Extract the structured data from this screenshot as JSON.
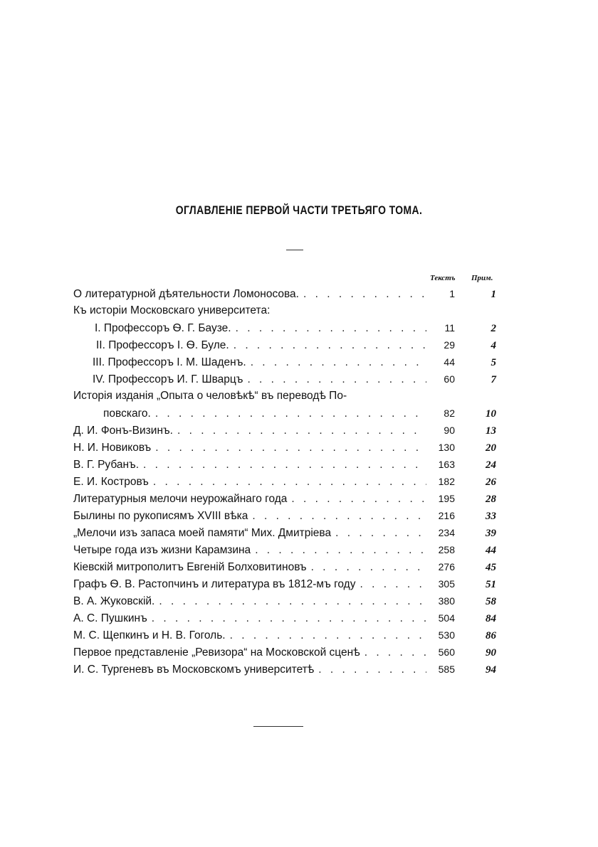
{
  "title": "ОГЛАВЛЕНІЕ ПЕРВОЙ ЧАСТИ ТРЕТЬЯГО ТОМА.",
  "columns": {
    "text": "Текстъ",
    "notes": "Прим."
  },
  "entries": [
    {
      "title": "О литературной дѣятельности Ломоносова.",
      "page": "1",
      "note": "1"
    },
    {
      "title": "Къ исторіи Московскаго университета:",
      "page": "",
      "note": ""
    },
    {
      "title": "I. Профессоръ Ѳ. Г. Баузе.",
      "page": "11",
      "note": "2"
    },
    {
      "title": "II. Профессоръ I. Ѳ. Буле.",
      "page": "29",
      "note": "4"
    },
    {
      "title": "III. Профессоръ I. М. Шаденъ.",
      "page": "44",
      "note": "5"
    },
    {
      "title": "IV. Профессоръ И. Г. Шварцъ",
      "page": "60",
      "note": "7"
    },
    {
      "title": "Исторія изданія „Опыта о человѣкѣ“ въ переводѣ По-",
      "page": "",
      "note": ""
    },
    {
      "title": "повскаго.",
      "page": "82",
      "note": "10"
    },
    {
      "title": "Д. И. Фонъ-Визинъ.",
      "page": "90",
      "note": "13"
    },
    {
      "title": "Н. И. Новиковъ",
      "page": "130",
      "note": "20"
    },
    {
      "title": "В. Г. Рубанъ.",
      "page": "163",
      "note": "24"
    },
    {
      "title": "Е. И. Костровъ",
      "page": "182",
      "note": "26"
    },
    {
      "title": "Литературныя мелочи неурожайнаго года",
      "page": "195",
      "note": "28"
    },
    {
      "title": "Былины по рукописямъ XVIII вѣка",
      "page": "216",
      "note": "33"
    },
    {
      "title": "„Мелочи изъ запаса моей памяти“ Мих. Дмитріева",
      "page": "234",
      "note": "39"
    },
    {
      "title": "Четыре года изъ жизни Карамзина",
      "page": "258",
      "note": "44"
    },
    {
      "title": "Кіевскій митрополитъ Евгеній Болховитиновъ",
      "page": "276",
      "note": "45"
    },
    {
      "title": "Графъ Ѳ. В. Растопчинъ и литература въ 1812-мъ году",
      "page": "305",
      "note": "51"
    },
    {
      "title": "В. А. Жуковскій.",
      "page": "380",
      "note": "58"
    },
    {
      "title": "А. С. Пушкинъ",
      "page": "504",
      "note": "84"
    },
    {
      "title": "М. С. Щепкинъ и Н. В. Гоголь.",
      "page": "530",
      "note": "86"
    },
    {
      "title": "Первое представленіе „Ревизора“ на Московской сценѣ",
      "page": "560",
      "note": "90"
    },
    {
      "title": "И. С. Тургеневъ въ Московскомъ университетѣ",
      "page": "585",
      "note": "94"
    }
  ]
}
